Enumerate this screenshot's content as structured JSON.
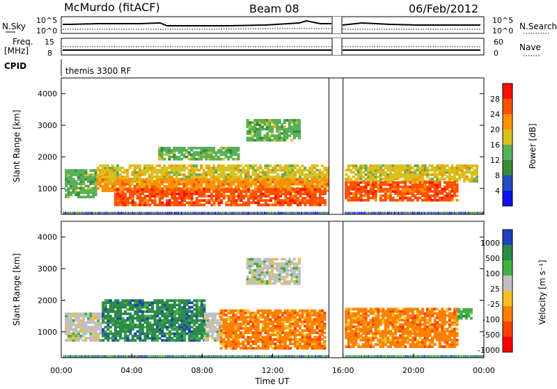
{
  "header": {
    "station": "McMurdo (fitACF)",
    "beam": "Beam 08",
    "date": "06/Feb/2012"
  },
  "aux": {
    "nsky_label": "N.Sky",
    "nsky_ticks": [
      "10^5",
      "10^0"
    ],
    "nsearch_label": "N.Search",
    "freq_label_1": "Freq.",
    "freq_label_2": "[MHz]",
    "freq_ticks": [
      "15",
      "8"
    ],
    "nave_label": "Nave",
    "nave_ticks": [
      "60",
      "0"
    ],
    "cpid_label": "CPID",
    "cpid_value": "themis 3300 RF"
  },
  "chart_data": [
    {
      "type": "heatmap",
      "name": "power",
      "ylabel": "Slant Range [km]",
      "ylim": [
        180,
        4500
      ],
      "ytick_labels": [
        "1000",
        "2000",
        "3000",
        "4000"
      ],
      "ytick_values": [
        1000,
        2000,
        3000,
        4000
      ],
      "xlim_hours": [
        0,
        24
      ],
      "data_gap_hours": [
        15.2,
        16.0
      ],
      "colorbar": {
        "label": "Power [dB]",
        "tick_labels": [
          "4",
          "8",
          "12",
          "16",
          "20",
          "24",
          "28"
        ],
        "range": [
          0,
          32
        ],
        "colors": [
          "#1010f0",
          "#2050c0",
          "#3a8a3a",
          "#58b058",
          "#d8c020",
          "#ff9000",
          "#ff5000",
          "#ff1000"
        ]
      }
    },
    {
      "type": "heatmap",
      "name": "velocity",
      "ylabel": "Slant Range [km]",
      "xlabel": "Time UT",
      "ylim": [
        180,
        4500
      ],
      "ytick_labels": [
        "1000",
        "2000",
        "3000",
        "4000"
      ],
      "ytick_values": [
        1000,
        2000,
        3000,
        4000
      ],
      "xlim_hours": [
        0,
        24
      ],
      "xtick_labels": [
        "00:00",
        "04:00",
        "08:00",
        "12:00",
        "16:00",
        "20:00",
        "00:00"
      ],
      "data_gap_hours": [
        15.2,
        16.0
      ],
      "colorbar": {
        "label": "Velocity [m s⁻¹]",
        "tick_labels": [
          "1000",
          "500",
          "100",
          "25",
          "-25",
          "-100",
          "-500",
          "-1000"
        ],
        "colors": [
          "#2040c0",
          "#2c8a4a",
          "#40b040",
          "#c0c0c0",
          "#f5c020",
          "#ff8000",
          "#ff4000",
          "#ff0000"
        ]
      }
    }
  ],
  "regions": {
    "power": [
      {
        "t0": 0.2,
        "t1": 2.0,
        "r0": 700,
        "r1": 1600,
        "c": 3
      },
      {
        "t0": 2.0,
        "t1": 15.1,
        "r0": 1200,
        "r1": 1750,
        "c": 4
      },
      {
        "t0": 2.0,
        "t1": 15.1,
        "r0": 900,
        "r1": 1300,
        "c": 5
      },
      {
        "t0": 3.0,
        "t1": 15.0,
        "r0": 450,
        "r1": 950,
        "c": 6
      },
      {
        "t0": 5.5,
        "t1": 10.0,
        "r0": 1900,
        "r1": 2300,
        "c": 3
      },
      {
        "t0": 10.5,
        "t1": 13.5,
        "r0": 2500,
        "r1": 3200,
        "c": 3
      },
      {
        "t0": 16.1,
        "t1": 23.6,
        "r0": 1200,
        "r1": 1700,
        "c": 4
      },
      {
        "t0": 16.1,
        "t1": 22.5,
        "r0": 600,
        "r1": 1200,
        "c": 6
      }
    ],
    "velocity": [
      {
        "t0": 0.2,
        "t1": 2.3,
        "r0": 700,
        "r1": 1600,
        "c": 3
      },
      {
        "t0": 2.3,
        "t1": 8.1,
        "r0": 700,
        "r1": 2000,
        "c": 1
      },
      {
        "t0": 8.1,
        "t1": 9.0,
        "r0": 700,
        "r1": 1600,
        "c": 3
      },
      {
        "t0": 9.0,
        "t1": 15.0,
        "r0": 450,
        "r1": 1700,
        "c": 5
      },
      {
        "t0": 10.5,
        "t1": 13.5,
        "r0": 2500,
        "r1": 3300,
        "c": 3
      },
      {
        "t0": 16.1,
        "t1": 22.5,
        "r0": 500,
        "r1": 1700,
        "c": 5
      },
      {
        "t0": 22.5,
        "t1": 23.3,
        "r0": 1400,
        "r1": 1700,
        "c": 2
      }
    ]
  }
}
